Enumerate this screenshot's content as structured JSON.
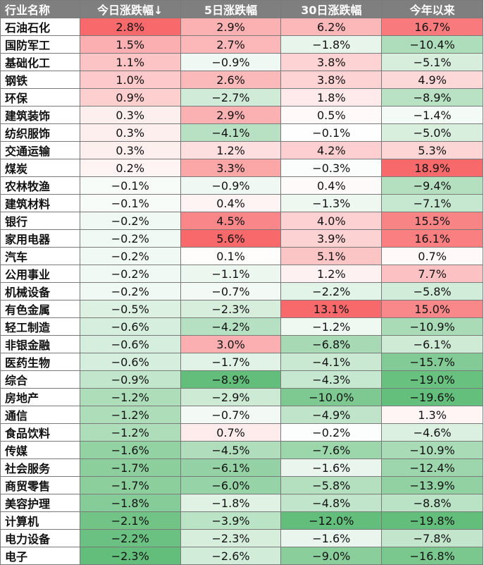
{
  "table": {
    "headers": [
      "行业名称",
      "今日涨跌幅↓",
      "5日涨跌幅",
      "30日涨跌幅",
      "今年以来"
    ],
    "rows": [
      [
        "石油石化",
        "2.8%",
        "2.9%",
        "6.2%",
        "16.7%"
      ],
      [
        "国防军工",
        "1.5%",
        "2.7%",
        "−1.8%",
        "−10.4%"
      ],
      [
        "基础化工",
        "1.1%",
        "−0.9%",
        "3.8%",
        "−5.1%"
      ],
      [
        "钢铁",
        "1.0%",
        "2.6%",
        "3.8%",
        "4.9%"
      ],
      [
        "环保",
        "0.9%",
        "−2.7%",
        "1.8%",
        "−8.9%"
      ],
      [
        "建筑装饰",
        "0.3%",
        "2.9%",
        "0.5%",
        "−1.4%"
      ],
      [
        "纺织服饰",
        "0.3%",
        "−4.1%",
        "−0.1%",
        "−5.0%"
      ],
      [
        "交通运输",
        "0.3%",
        "1.2%",
        "4.2%",
        "5.3%"
      ],
      [
        "煤炭",
        "0.2%",
        "3.3%",
        "−0.3%",
        "18.9%"
      ],
      [
        "农林牧渔",
        "−0.1%",
        "−0.9%",
        "0.4%",
        "−9.4%"
      ],
      [
        "建筑材料",
        "−0.1%",
        "0.4%",
        "−1.3%",
        "−7.1%"
      ],
      [
        "银行",
        "−0.2%",
        "4.5%",
        "4.0%",
        "15.5%"
      ],
      [
        "家用电器",
        "−0.2%",
        "5.6%",
        "3.9%",
        "16.1%"
      ],
      [
        "汽车",
        "−0.2%",
        "0.1%",
        "5.1%",
        "0.7%"
      ],
      [
        "公用事业",
        "−0.2%",
        "−1.1%",
        "1.2%",
        "7.7%"
      ],
      [
        "机械设备",
        "−0.2%",
        "−0.7%",
        "−2.2%",
        "−5.8%"
      ],
      [
        "有色金属",
        "−0.5%",
        "−2.3%",
        "13.1%",
        "15.0%"
      ],
      [
        "轻工制造",
        "−0.6%",
        "−4.2%",
        "−1.2%",
        "−10.9%"
      ],
      [
        "非银金融",
        "−0.6%",
        "3.0%",
        "−6.8%",
        "−6.1%"
      ],
      [
        "医药生物",
        "−0.6%",
        "−1.7%",
        "−4.1%",
        "−15.7%"
      ],
      [
        "综合",
        "−0.9%",
        "−8.9%",
        "−4.3%",
        "−19.0%"
      ],
      [
        "房地产",
        "−1.2%",
        "−2.9%",
        "−10.0%",
        "−19.6%"
      ],
      [
        "通信",
        "−1.2%",
        "−0.7%",
        "−4.9%",
        "1.3%"
      ],
      [
        "食品饮料",
        "−1.2%",
        "0.7%",
        "−0.2%",
        "−4.6%"
      ],
      [
        "传媒",
        "−1.6%",
        "−4.5%",
        "−7.6%",
        "−10.9%"
      ],
      [
        "社会服务",
        "−1.7%",
        "−6.1%",
        "−1.6%",
        "−12.4%"
      ],
      [
        "商贸零售",
        "−1.7%",
        "−6.0%",
        "−5.8%",
        "−13.9%"
      ],
      [
        "美容护理",
        "−1.8%",
        "−1.8%",
        "−4.8%",
        "−8.8%"
      ],
      [
        "计算机",
        "−2.1%",
        "−3.9%",
        "−12.0%",
        "−19.8%"
      ],
      [
        "电力设备",
        "−2.2%",
        "−2.3%",
        "−1.6%",
        "−7.8%"
      ],
      [
        "电子",
        "−2.3%",
        "−2.6%",
        "−9.0%",
        "−16.8%"
      ]
    ]
  },
  "colors": {
    "header_bg": "#7f7f7f",
    "header_text": "#ffffff",
    "positive_max": "#f8696b",
    "negative_max": "#63be7b",
    "neutral": "#ffffff",
    "grid_line": "#7a7a7a"
  }
}
